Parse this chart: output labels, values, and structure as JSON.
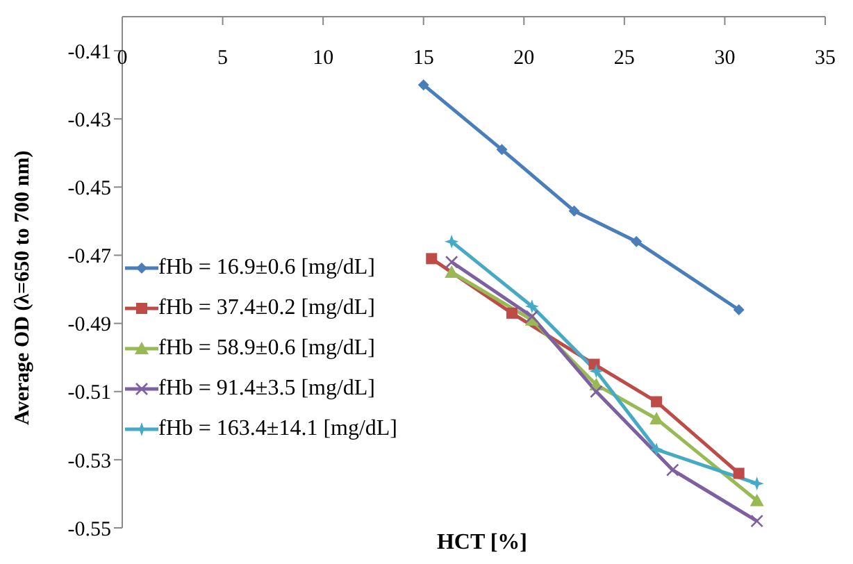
{
  "chart_data": {
    "type": "line",
    "xlabel": "HCT [%]",
    "ylabel": "Average OD (λ=650 to 700 nm)",
    "xlim": [
      0,
      35
    ],
    "xticks": [
      0,
      5,
      10,
      15,
      20,
      25,
      30,
      35
    ],
    "ylim": [
      -0.55,
      -0.4
    ],
    "yticks": [
      -0.55,
      -0.53,
      -0.51,
      -0.49,
      -0.47,
      -0.45,
      -0.43,
      -0.41
    ],
    "grid": false,
    "legend": "left",
    "line_style": "solid",
    "series": [
      {
        "name": "fHb = 16.9±0.6 [mg/dL]",
        "color": "#4a7ebb",
        "marker": "diamond",
        "x": [
          15,
          18.9,
          22.5,
          25.6,
          30.7
        ],
        "values": [
          -0.42,
          -0.439,
          -0.457,
          -0.466,
          -0.486
        ]
      },
      {
        "name": "fHb = 37.4±0.2 [mg/dL]",
        "color": "#be4b48",
        "marker": "square",
        "x": [
          15.4,
          19.4,
          23.5,
          26.6,
          30.7
        ],
        "values": [
          -0.471,
          -0.487,
          -0.502,
          -0.513,
          -0.534
        ]
      },
      {
        "name": "fHb = 58.9±0.6 [mg/dL]",
        "color": "#98b954",
        "marker": "triangle",
        "x": [
          16.4,
          20.4,
          23.6,
          26.6,
          31.6
        ],
        "values": [
          -0.475,
          -0.489,
          -0.508,
          -0.518,
          -0.542
        ]
      },
      {
        "name": "fHb = 91.4±3.5 [mg/dL]",
        "color": "#7d60a0",
        "marker": "cross",
        "x": [
          16.4,
          20.4,
          23.6,
          27.4,
          31.6
        ],
        "values": [
          -0.472,
          -0.488,
          -0.51,
          -0.533,
          -0.548
        ]
      },
      {
        "name": "fHb = 163.4±14.1 [mg/dL]",
        "color": "#46aac5",
        "marker": "star",
        "x": [
          16.4,
          20.4,
          23.6,
          26.6,
          31.6
        ],
        "values": [
          -0.466,
          -0.485,
          -0.504,
          -0.527,
          -0.537
        ]
      }
    ]
  }
}
